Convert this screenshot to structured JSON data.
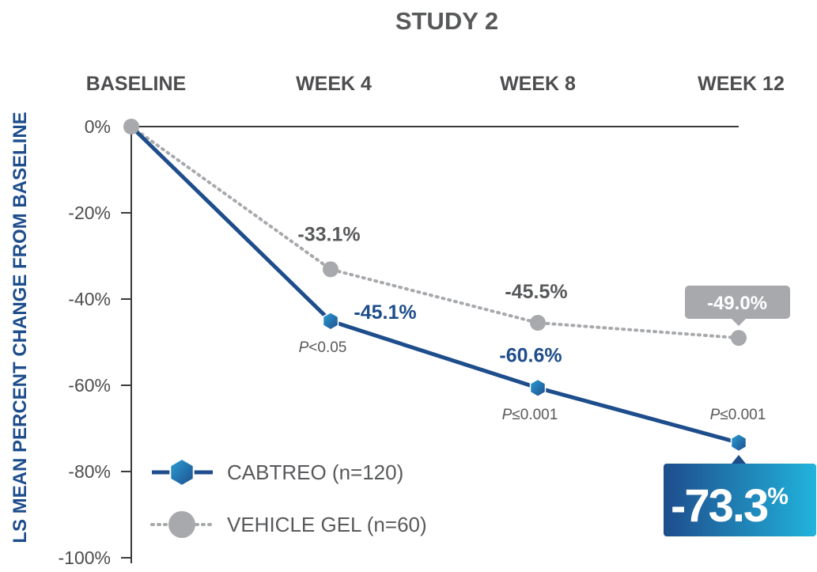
{
  "chart_data": {
    "type": "line",
    "title": "STUDY 2",
    "ylabel": "LS MEAN PERCENT CHANGE FROM BASELINE",
    "categories": [
      "BASELINE",
      "WEEK 4",
      "WEEK 8",
      "WEEK 12"
    ],
    "ylim": [
      -100,
      0
    ],
    "yticks": [
      0,
      -20,
      -40,
      -60,
      -80,
      -100
    ],
    "ytick_labels": [
      "0%",
      "-20%",
      "-40%",
      "-60%",
      "-80%",
      "-100%"
    ],
    "series": [
      {
        "name": "CABTREO (n=120)",
        "color": "#1e4d8c",
        "style": "solid",
        "marker": "hexagon",
        "values": [
          0,
          -45.1,
          -60.6,
          -73.3
        ],
        "labels": [
          "",
          "-45.1%",
          "-60.6%",
          ""
        ],
        "highlight_label": "-73.3",
        "highlight_suffix": "%"
      },
      {
        "name": "VEHICLE GEL (n=60)",
        "color": "#a7a9ac",
        "style": "dotted",
        "marker": "circle",
        "values": [
          0,
          -33.1,
          -45.5,
          -49.0
        ],
        "labels": [
          "",
          "-33.1%",
          "-45.5%",
          "-49.0%"
        ]
      }
    ],
    "p_values": [
      {
        "prefix": "P",
        "text": "<0.05"
      },
      {
        "prefix": "P",
        "text": "≤0.001"
      },
      {
        "prefix": "P",
        "text": "≤0.001"
      }
    ],
    "legend_position": "bottom-left",
    "grid": false
  }
}
